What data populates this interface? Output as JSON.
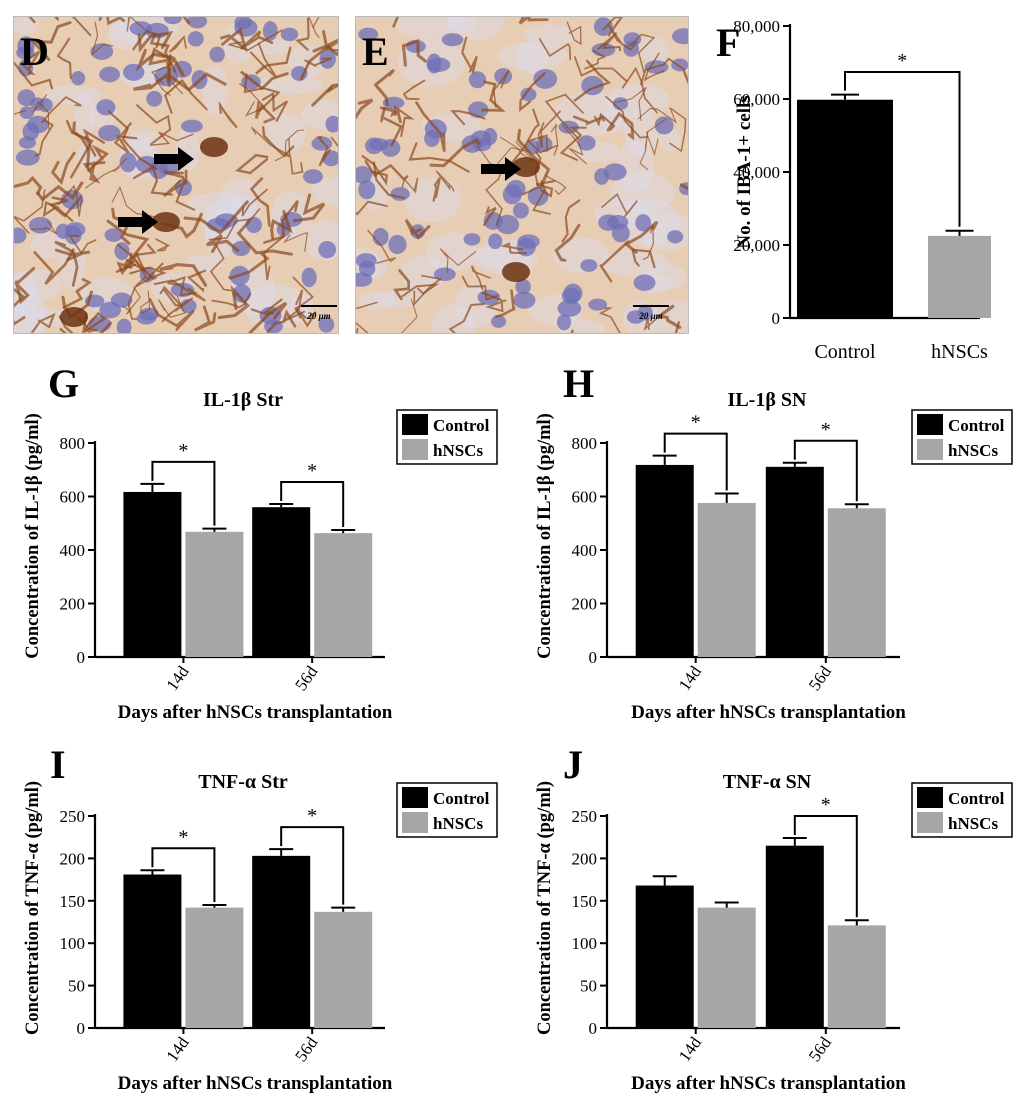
{
  "panels": {
    "D": "D",
    "E": "E",
    "F": "F",
    "G": "G",
    "H": "H",
    "I": "I",
    "J": "J"
  },
  "micrographs": [
    {
      "id": "D",
      "scale_bar": "20 μm",
      "arrow_count": 2
    },
    {
      "id": "E",
      "scale_bar": "20 μm",
      "arrow_count": 1
    }
  ],
  "colors": {
    "control": "#000000",
    "hnscs": "#a6a6a6",
    "tissue_bg": "#e8cdb5",
    "stain_brown": "#8a4a1c",
    "nucleus_blue": "#6f6fb8"
  },
  "chart_data": [
    {
      "panel": "F",
      "type": "bar",
      "title": "",
      "categories": [
        "Control",
        "hNSCs"
      ],
      "values": [
        59800,
        22500
      ],
      "errors": [
        1400,
        1400
      ],
      "xlabel": "",
      "ylabel": "No. of IBA-1+ cells",
      "ylim": [
        0,
        80000
      ],
      "yticks": [
        "0",
        "20,000",
        "40,000",
        "60,000",
        "80,000"
      ],
      "significance": [
        {
          "label": "*"
        }
      ]
    },
    {
      "panel": "G",
      "type": "bar",
      "title": "IL-1β Str",
      "categories": [
        "14d",
        "56d"
      ],
      "series": [
        {
          "name": "Control",
          "values": [
            617,
            560
          ],
          "errors": [
            30,
            12
          ]
        },
        {
          "name": "hNSCs",
          "values": [
            468,
            463
          ],
          "errors": [
            12,
            12
          ]
        }
      ],
      "xlabel": "Days after hNSCs transplantation",
      "ylabel": "Concentration of IL-1β (pg/ml)",
      "ylim": [
        0,
        800
      ],
      "yticks": [
        "0",
        "200",
        "400",
        "600",
        "800"
      ],
      "significance": [
        "*",
        "*"
      ],
      "legend": "top-right"
    },
    {
      "panel": "H",
      "type": "bar",
      "title": "IL-1β SN",
      "categories": [
        "14d",
        "56d"
      ],
      "series": [
        {
          "name": "Control",
          "values": [
            718,
            711
          ],
          "errors": [
            35,
            15
          ]
        },
        {
          "name": "hNSCs",
          "values": [
            576,
            556
          ],
          "errors": [
            35,
            15
          ]
        }
      ],
      "xlabel": "Days after hNSCs transplantation",
      "ylabel": "Concentration of IL-1β (pg/ml)",
      "ylim": [
        0,
        800
      ],
      "yticks": [
        "0",
        "200",
        "400",
        "600",
        "800"
      ],
      "significance": [
        "*",
        "*"
      ],
      "legend": "top-right"
    },
    {
      "panel": "I",
      "type": "bar",
      "title": "TNF-α Str",
      "categories": [
        "14d",
        "56d"
      ],
      "series": [
        {
          "name": "Control",
          "values": [
            181,
            203
          ],
          "errors": [
            5,
            8
          ]
        },
        {
          "name": "hNSCs",
          "values": [
            142,
            137
          ],
          "errors": [
            3,
            5
          ]
        }
      ],
      "xlabel": "Days after hNSCs transplantation",
      "ylabel": "Concentration of TNF-α (pg/ml)",
      "ylim": [
        0,
        250
      ],
      "yticks": [
        "0",
        "50",
        "100",
        "150",
        "200",
        "250"
      ],
      "significance": [
        "*",
        "*"
      ],
      "legend": "top-right"
    },
    {
      "panel": "J",
      "type": "bar",
      "title": "TNF-α SN",
      "categories": [
        "14d",
        "56d"
      ],
      "series": [
        {
          "name": "Control",
          "values": [
            168,
            215
          ],
          "errors": [
            11,
            9
          ]
        },
        {
          "name": "hNSCs",
          "values": [
            142,
            121
          ],
          "errors": [
            6,
            6
          ]
        }
      ],
      "xlabel": "Days after hNSCs transplantation",
      "ylabel": "Concentration of TNF-α (pg/ml)",
      "ylim": [
        0,
        250
      ],
      "yticks": [
        "0",
        "50",
        "100",
        "150",
        "200",
        "250"
      ],
      "significance": [
        null,
        "*"
      ],
      "legend": "top-right"
    }
  ]
}
